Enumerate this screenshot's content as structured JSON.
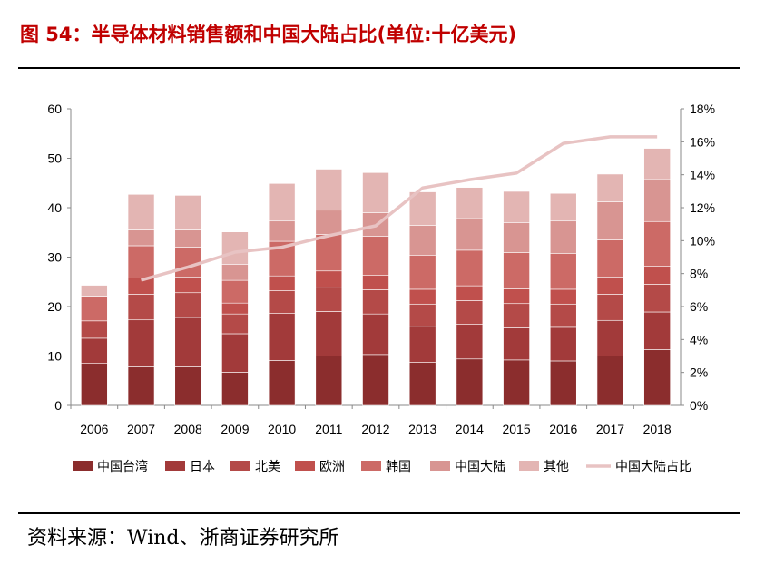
{
  "figure": {
    "title": "图 54：半导体材料销售额和中国大陆占比(单位:十亿美元)",
    "source": "资料来源：Wind、浙商证券研究所"
  },
  "chart_data": {
    "type": "bar",
    "stacked": true,
    "title": "",
    "xlabel": "",
    "ylabel": "",
    "categories": [
      "2006",
      "2007",
      "2008",
      "2009",
      "2010",
      "2011",
      "2012",
      "2013",
      "2014",
      "2015",
      "2016",
      "2017",
      "2018"
    ],
    "ylim": [
      0,
      60
    ],
    "yticks": [
      "0",
      "10",
      "20",
      "30",
      "40",
      "50",
      "60"
    ],
    "y2lim": [
      0,
      18
    ],
    "y2ticks": [
      "0%",
      "2%",
      "4%",
      "6%",
      "8%",
      "10%",
      "12%",
      "14%",
      "16%",
      "18%"
    ],
    "series": [
      {
        "name": "中国台湾",
        "color": "#8b2d2d",
        "values": [
          8.5,
          7.8,
          7.8,
          6.7,
          9.1,
          10.0,
          10.3,
          8.7,
          9.4,
          9.2,
          9.0,
          10.0,
          11.3
        ]
      },
      {
        "name": "日本",
        "color": "#a23a3a",
        "values": [
          5.1,
          9.5,
          10.0,
          7.8,
          9.5,
          9.0,
          8.2,
          7.3,
          7.0,
          6.5,
          6.8,
          7.2,
          7.6
        ]
      },
      {
        "name": "北美",
        "color": "#b44a48",
        "values": [
          3.5,
          5.2,
          5.0,
          4.0,
          4.6,
          4.9,
          4.9,
          4.5,
          4.8,
          4.9,
          4.7,
          5.3,
          5.6
        ]
      },
      {
        "name": "欧洲",
        "color": "#c0504d",
        "values": [
          0,
          3.3,
          3.2,
          2.2,
          3.0,
          3.3,
          2.9,
          3.0,
          3.0,
          3.0,
          3.0,
          3.5,
          3.7
        ]
      },
      {
        "name": "韩国",
        "color": "#cc6a66",
        "values": [
          5.0,
          6.5,
          6.0,
          4.6,
          7.0,
          7.4,
          7.9,
          6.9,
          7.2,
          7.3,
          7.2,
          7.5,
          9.0
        ]
      },
      {
        "name": "中国大陆",
        "color": "#d89592",
        "values": [
          0,
          3.2,
          3.5,
          3.2,
          4.1,
          4.9,
          4.8,
          6.0,
          6.4,
          6.1,
          6.6,
          7.7,
          8.5
        ]
      },
      {
        "name": "其他",
        "color": "#e3b5b3",
        "values": [
          2.2,
          7.2,
          7.0,
          6.6,
          7.6,
          8.3,
          8.1,
          6.8,
          6.3,
          6.3,
          5.6,
          5.6,
          6.3
        ]
      }
    ],
    "line": {
      "name": "中国大陆占比",
      "color": "#e8c3c3",
      "axis": "right",
      "values": [
        null,
        7.6,
        8.4,
        9.3,
        9.6,
        10.3,
        10.9,
        13.2,
        13.7,
        14.1,
        15.9,
        16.3,
        16.3
      ]
    },
    "legend_position": "bottom"
  }
}
